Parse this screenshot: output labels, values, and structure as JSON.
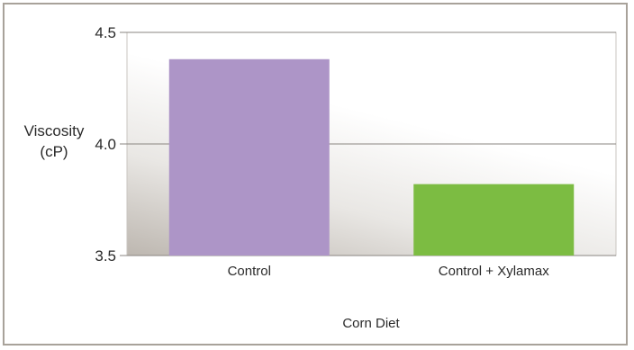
{
  "chart_data": {
    "type": "bar",
    "title": "",
    "ylabel_lines": [
      "Viscosity",
      "(cP)"
    ],
    "xlabel": "Corn Diet",
    "categories": [
      "Control",
      "Control + Xylamax"
    ],
    "values": [
      4.38,
      3.82
    ],
    "bar_colors": [
      "#ad95c7",
      "#7cbc42"
    ],
    "ylim": [
      3.5,
      4.5
    ],
    "yticks": [
      3.5,
      4.0,
      4.5
    ],
    "ytick_labels": [
      "3.5",
      "4.0",
      "4.5"
    ],
    "grid": true,
    "legend": "none"
  }
}
